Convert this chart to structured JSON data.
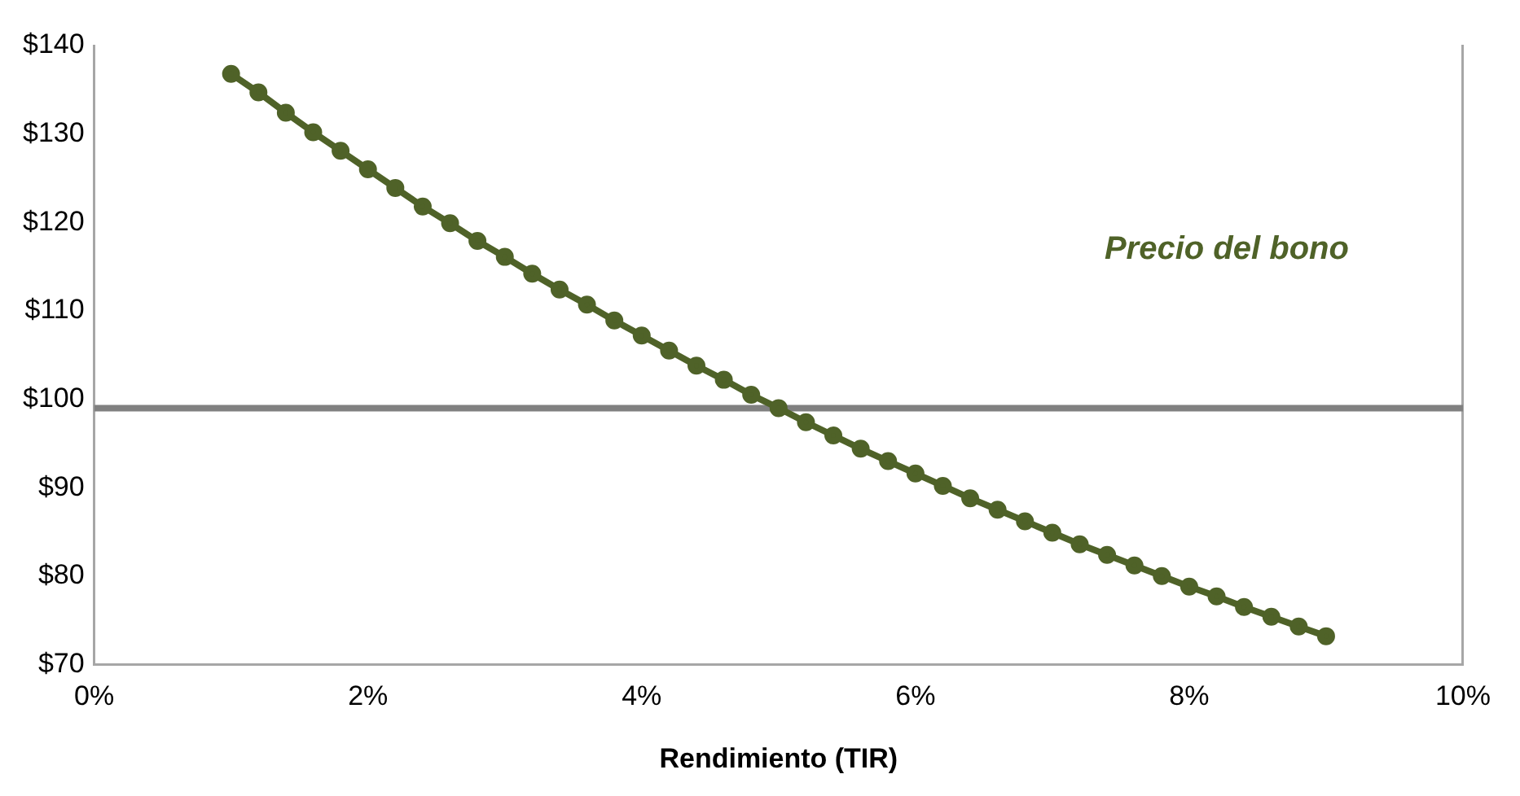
{
  "chart_data": {
    "type": "line",
    "xlabel": "Rendimiento (TIR)",
    "x": [
      1.0,
      1.2,
      1.4,
      1.6,
      1.8,
      2.0,
      2.2,
      2.4,
      2.6,
      2.8,
      3.0,
      3.2,
      3.4,
      3.6,
      3.8,
      4.0,
      4.2,
      4.4,
      4.6,
      4.8,
      5.0,
      5.2,
      5.4,
      5.6,
      5.8,
      6.0,
      6.2,
      6.4,
      6.6,
      6.8,
      7.0,
      7.2,
      7.4,
      7.6,
      7.8,
      8.0,
      8.2,
      8.4,
      8.6,
      8.8,
      9.0
    ],
    "series": [
      {
        "name": "Precio del bono",
        "color": "#4f6228",
        "values": [
          136.8,
          134.7,
          132.4,
          130.2,
          128.1,
          126.0,
          123.9,
          121.8,
          119.9,
          117.9,
          116.1,
          114.2,
          112.4,
          110.7,
          108.9,
          107.2,
          105.5,
          103.8,
          102.2,
          100.5,
          99.0,
          97.4,
          95.9,
          94.4,
          93.0,
          91.6,
          90.2,
          88.8,
          87.5,
          86.2,
          84.9,
          83.6,
          82.4,
          81.2,
          80.0,
          78.8,
          77.7,
          76.5,
          75.4,
          74.3,
          73.2
        ]
      }
    ],
    "xlim": [
      0,
      10
    ],
    "xticks": [
      {
        "value": 0,
        "label": "0%"
      },
      {
        "value": 2,
        "label": "2%"
      },
      {
        "value": 4,
        "label": "4%"
      },
      {
        "value": 6,
        "label": "6%"
      },
      {
        "value": 8,
        "label": "8%"
      },
      {
        "value": 10,
        "label": "10%"
      }
    ],
    "ylim": [
      70,
      140
    ],
    "yticks": [
      {
        "value": 70,
        "label": "$70"
      },
      {
        "value": 80,
        "label": "$80"
      },
      {
        "value": 90,
        "label": "$90"
      },
      {
        "value": 100,
        "label": "$100"
      },
      {
        "value": 110,
        "label": "$110"
      },
      {
        "value": 120,
        "label": "$120"
      },
      {
        "value": 130,
        "label": "$130"
      },
      {
        "value": 140,
        "label": "$140"
      }
    ],
    "ref_lines": [
      {
        "axis": "y",
        "value": 99,
        "color": "#808080"
      }
    ],
    "grid": false,
    "legend": false,
    "marker": "circle",
    "line_style": "solid"
  }
}
